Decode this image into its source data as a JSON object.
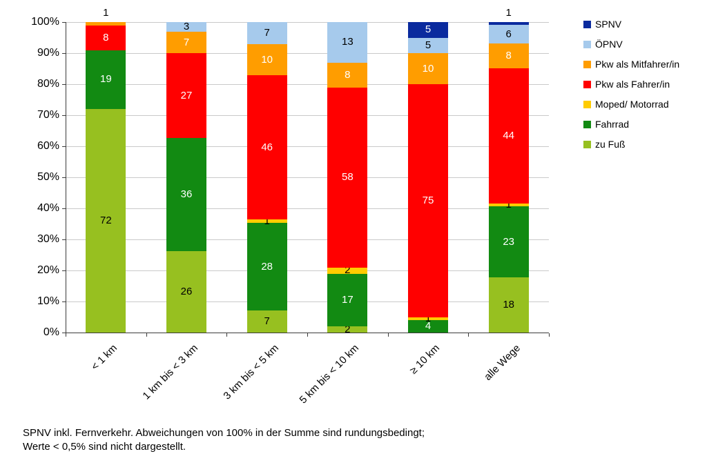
{
  "chart_data": {
    "type": "bar",
    "variant": "100-percent-stacked-column",
    "title": "",
    "xlabel": "",
    "ylabel": "",
    "ylim": [
      0,
      100
    ],
    "grid": true,
    "legend_position": "right",
    "yticks": [
      "0%",
      "10%",
      "20%",
      "30%",
      "40%",
      "50%",
      "60%",
      "70%",
      "80%",
      "90%",
      "100%"
    ],
    "categories": [
      "< 1 km",
      "1 km bis < 3 km",
      "3 km bis < 5 km",
      "5 km bis < 10 km",
      "≥ 10 km",
      "alle Wege"
    ],
    "series": [
      {
        "name": "zu Fuß",
        "color": "#97c020",
        "label_color": "#000000",
        "values": [
          72,
          26,
          7,
          2,
          null,
          18
        ]
      },
      {
        "name": "Fahrrad",
        "color": "#128a12",
        "label_color": "#ffffff",
        "values": [
          19,
          36,
          28,
          17,
          4,
          23
        ]
      },
      {
        "name": "Moped/ Motorrad",
        "color": "#ffcc00",
        "label_color": "#000000",
        "values": [
          null,
          null,
          1,
          2,
          1,
          1
        ]
      },
      {
        "name": "Pkw als Fahrer/in",
        "color": "#ff0000",
        "label_color": "#ffffff",
        "values": [
          8,
          27,
          46,
          58,
          75,
          44
        ]
      },
      {
        "name": "Pkw als Mitfahrer/in",
        "color": "#ff9d00",
        "label_color": "#ffffff",
        "values": [
          1,
          7,
          10,
          8,
          10,
          8
        ]
      },
      {
        "name": "ÖPNV",
        "color": "#a6caec",
        "label_color": "#000000",
        "values": [
          null,
          3,
          7,
          13,
          5,
          6
        ]
      },
      {
        "name": "SPNV",
        "color": "#0a2a9e",
        "label_color": "#ffffff",
        "values": [
          null,
          null,
          null,
          null,
          5,
          1
        ]
      }
    ],
    "legend_order": [
      "SPNV",
      "ÖPNV",
      "Pkw als Mitfahrer/in",
      "Pkw als Fahrer/in",
      "Moped/ Motorrad",
      "Fahrrad",
      "zu Fuß"
    ]
  },
  "footnote": "SPNV inkl. Fernverkehr. Abweichungen von 100% in der Summe sind rundungsbedingt;\nWerte < 0,5% sind nicht dargestellt."
}
